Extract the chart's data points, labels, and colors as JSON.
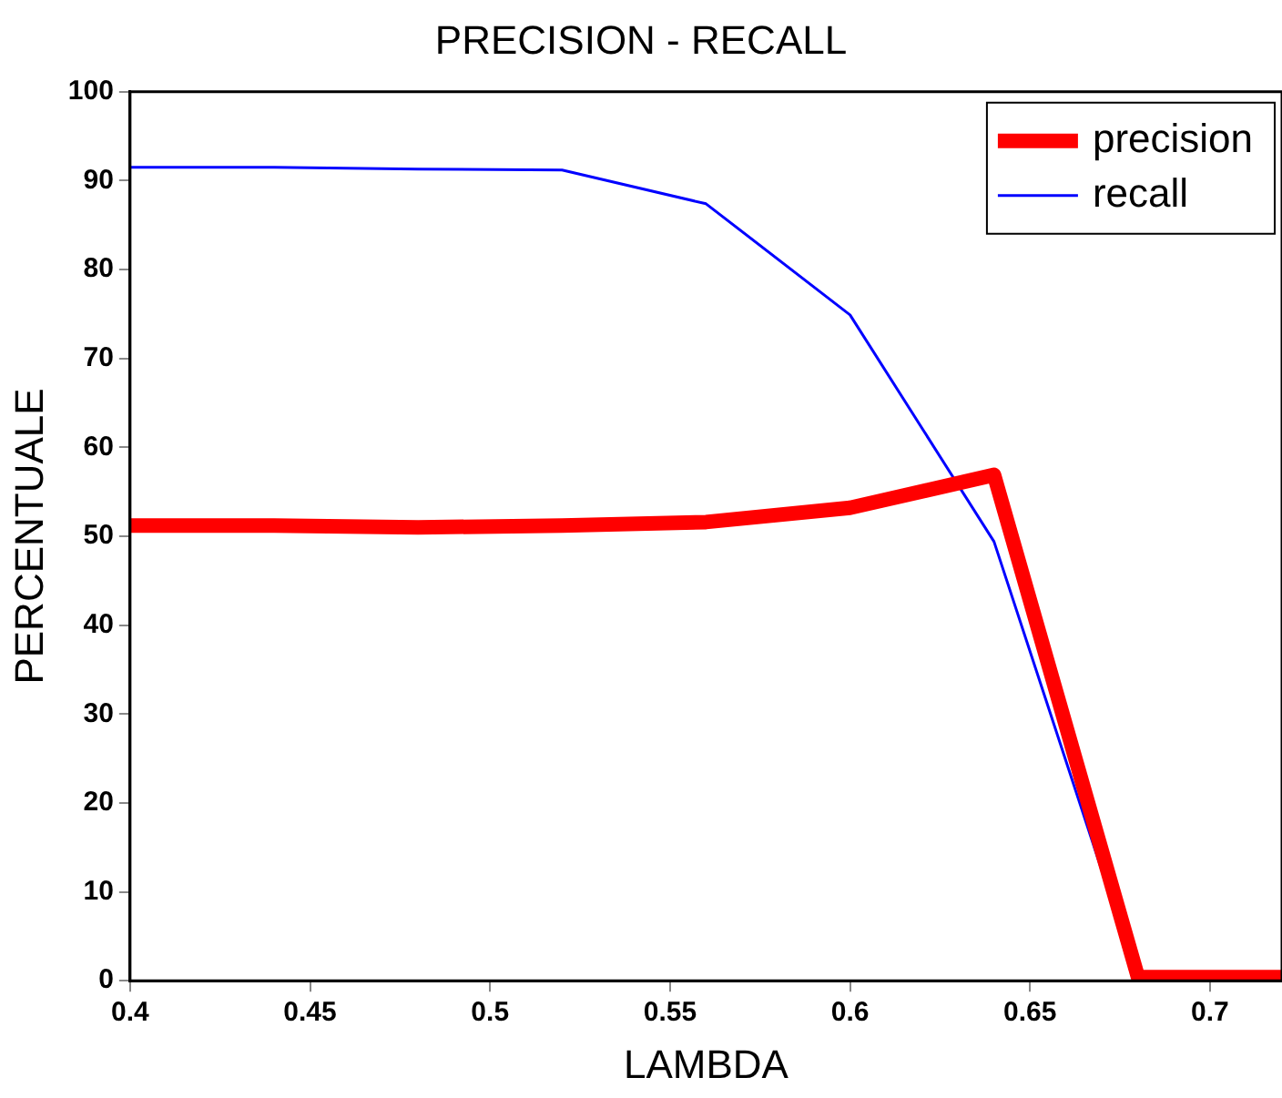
{
  "chart_data": {
    "type": "line",
    "title": "PRECISION - RECALL",
    "xlabel": "LAMBDA",
    "ylabel": "PERCENTUALE",
    "x": [
      0.4,
      0.44,
      0.48,
      0.52,
      0.56,
      0.6,
      0.64,
      0.68,
      0.72
    ],
    "series": [
      {
        "name": "precision",
        "color": "#ff0000",
        "values": [
          51.2,
          51.2,
          51.0,
          51.2,
          51.6,
          53.2,
          56.9,
          0.4,
          0.4
        ]
      },
      {
        "name": "recall",
        "color": "#0000ff",
        "values": [
          91.5,
          91.5,
          91.3,
          91.2,
          87.4,
          74.9,
          49.4,
          0,
          0
        ]
      }
    ],
    "xlim": [
      0.4,
      0.72
    ],
    "xticks": [
      0.4,
      0.45,
      0.5,
      0.55,
      0.6,
      0.65,
      0.7
    ],
    "ylim": [
      0,
      100
    ],
    "yticks": [
      0,
      10,
      20,
      30,
      40,
      50,
      60,
      70,
      80,
      90,
      100
    ],
    "grid": false,
    "legend": "top right",
    "marker": "none",
    "line_style": "solid"
  }
}
